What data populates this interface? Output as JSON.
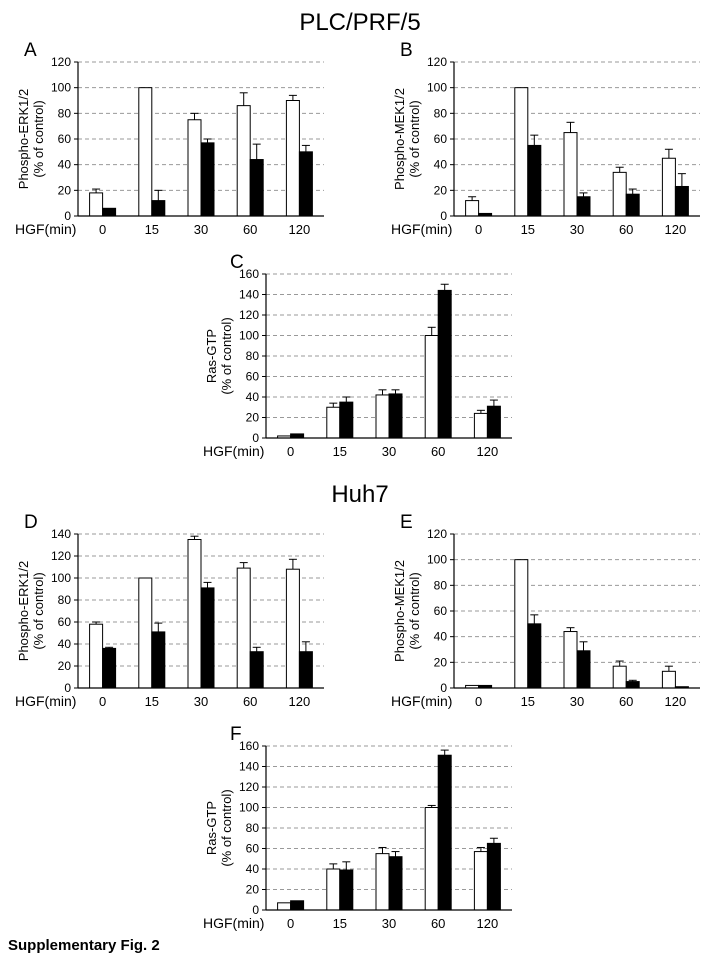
{
  "figure": {
    "caption": "Supplementary Fig. 2",
    "grid_color": "#999999",
    "bar_stroke": "#000000"
  },
  "groups": [
    {
      "title": "PLC/PRF/5"
    },
    {
      "title": "Huh7"
    }
  ],
  "chart_data": [
    {
      "panel_label": "A",
      "cell_line": "PLC/PRF/5",
      "type": "bar",
      "ylabel_lines": [
        "Phospho-ERK1/2",
        "(% of control)"
      ],
      "xlabel": "HGF(min)",
      "categories": [
        "0",
        "15",
        "30",
        "60",
        "120"
      ],
      "ylim": [
        0,
        120
      ],
      "yticks": [
        0,
        20,
        40,
        60,
        80,
        100,
        120
      ],
      "grid": "dashed-horizontal",
      "series": [
        {
          "name": "white-bars",
          "fill": "#ffffff",
          "values": [
            18,
            100,
            75,
            86,
            90
          ],
          "errors": [
            3,
            0,
            5,
            10,
            4
          ]
        },
        {
          "name": "black-bars",
          "fill": "#000000",
          "values": [
            6,
            12,
            57,
            44,
            50
          ],
          "errors": [
            0,
            8,
            3,
            12,
            5
          ]
        }
      ]
    },
    {
      "panel_label": "B",
      "cell_line": "PLC/PRF/5",
      "type": "bar",
      "ylabel_lines": [
        "Phospho-MEK1/2",
        "(% of control)"
      ],
      "xlabel": "HGF(min)",
      "categories": [
        "0",
        "15",
        "30",
        "60",
        "120"
      ],
      "ylim": [
        0,
        120
      ],
      "yticks": [
        0,
        20,
        40,
        60,
        80,
        100,
        120
      ],
      "grid": "dashed-horizontal",
      "series": [
        {
          "name": "white-bars",
          "fill": "#ffffff",
          "values": [
            12,
            100,
            65,
            34,
            45
          ],
          "errors": [
            3,
            0,
            8,
            4,
            7
          ]
        },
        {
          "name": "black-bars",
          "fill": "#000000",
          "values": [
            2,
            55,
            15,
            17,
            23
          ],
          "errors": [
            0,
            8,
            3,
            4,
            10
          ]
        }
      ]
    },
    {
      "panel_label": "C",
      "cell_line": "PLC/PRF/5",
      "type": "bar",
      "ylabel_lines": [
        "Ras-GTP",
        "(% of control)"
      ],
      "xlabel": "HGF(min)",
      "categories": [
        "0",
        "15",
        "30",
        "60",
        "120"
      ],
      "ylim": [
        0,
        160
      ],
      "yticks": [
        0,
        20,
        40,
        60,
        80,
        100,
        120,
        140,
        160
      ],
      "grid": "dashed-horizontal",
      "series": [
        {
          "name": "white-bars",
          "fill": "#ffffff",
          "values": [
            2,
            30,
            42,
            100,
            24
          ],
          "errors": [
            0,
            4,
            5,
            8,
            3
          ]
        },
        {
          "name": "black-bars",
          "fill": "#000000",
          "values": [
            4,
            35,
            43,
            144,
            31
          ],
          "errors": [
            0,
            5,
            4,
            6,
            6
          ]
        }
      ]
    },
    {
      "panel_label": "D",
      "cell_line": "Huh7",
      "type": "bar",
      "ylabel_lines": [
        "Phospho-ERK1/2",
        "(% of control)"
      ],
      "xlabel": "HGF(min)",
      "categories": [
        "0",
        "15",
        "30",
        "60",
        "120"
      ],
      "ylim": [
        0,
        140
      ],
      "yticks": [
        0,
        20,
        40,
        60,
        80,
        100,
        120,
        140
      ],
      "grid": "dashed-horizontal",
      "series": [
        {
          "name": "white-bars",
          "fill": "#ffffff",
          "values": [
            58,
            100,
            135,
            109,
            108
          ],
          "errors": [
            2,
            0,
            3,
            5,
            9
          ]
        },
        {
          "name": "black-bars",
          "fill": "#000000",
          "values": [
            36,
            51,
            91,
            33,
            33
          ],
          "errors": [
            1,
            8,
            5,
            4,
            9
          ]
        }
      ]
    },
    {
      "panel_label": "E",
      "cell_line": "Huh7",
      "type": "bar",
      "ylabel_lines": [
        "Phospho-MEK1/2",
        "(% of control)"
      ],
      "xlabel": "HGF(min)",
      "categories": [
        "0",
        "15",
        "30",
        "60",
        "120"
      ],
      "ylim": [
        0,
        120
      ],
      "yticks": [
        0,
        20,
        40,
        60,
        80,
        100,
        120
      ],
      "grid": "dashed-horizontal",
      "series": [
        {
          "name": "white-bars",
          "fill": "#ffffff",
          "values": [
            2,
            100,
            44,
            17,
            13
          ],
          "errors": [
            0,
            0,
            3,
            4,
            4
          ]
        },
        {
          "name": "black-bars",
          "fill": "#000000",
          "values": [
            2,
            50,
            29,
            5,
            1
          ],
          "errors": [
            0,
            7,
            7,
            1,
            0
          ]
        }
      ]
    },
    {
      "panel_label": "F",
      "cell_line": "Huh7",
      "type": "bar",
      "ylabel_lines": [
        "Ras-GTP",
        "(% of control)"
      ],
      "xlabel": "HGF(min)",
      "categories": [
        "0",
        "15",
        "30",
        "60",
        "120"
      ],
      "ylim": [
        0,
        160
      ],
      "yticks": [
        0,
        20,
        40,
        60,
        80,
        100,
        120,
        140,
        160
      ],
      "grid": "dashed-horizontal",
      "series": [
        {
          "name": "white-bars",
          "fill": "#ffffff",
          "values": [
            7,
            40,
            55,
            100,
            57
          ],
          "errors": [
            0,
            5,
            6,
            2,
            4
          ]
        },
        {
          "name": "black-bars",
          "fill": "#000000",
          "values": [
            9,
            39,
            52,
            151,
            65
          ],
          "errors": [
            0,
            8,
            5,
            5,
            5
          ]
        }
      ]
    }
  ]
}
